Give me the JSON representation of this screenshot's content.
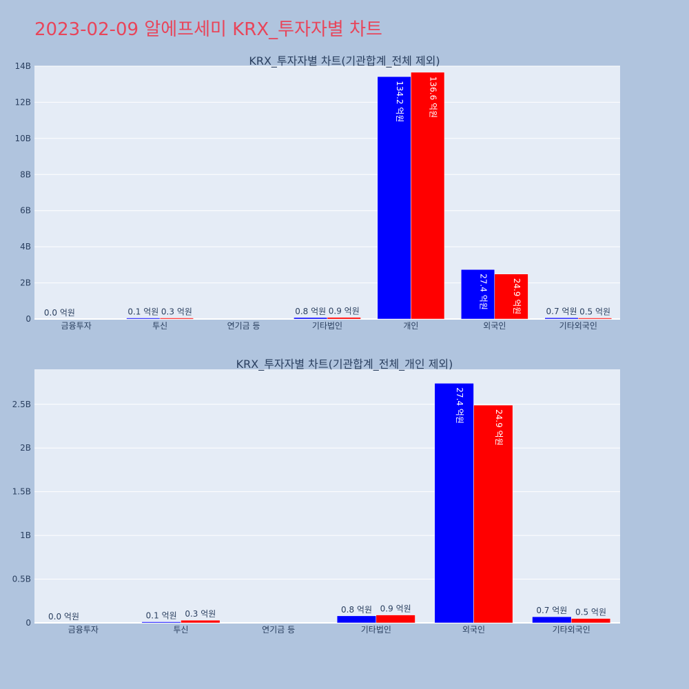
{
  "page": {
    "title": "2023-02-09 알에프세미 KRX_투자자별 차트"
  },
  "colors": {
    "background": "#b0c4de",
    "plot_bg": "#e5ecf6",
    "grid": "#ffffff",
    "series_a": "#0000ff",
    "series_b": "#ff0000",
    "title": "#e8455a"
  },
  "chart_data": [
    {
      "type": "bar",
      "title": "KRX_투자자별 차트(기관합계_전체 제외)",
      "categories": [
        "금융투자",
        "투신",
        "연기금 등",
        "기타법인",
        "개인",
        "외국인",
        "기타외국인"
      ],
      "ylim": [
        0,
        14000000000
      ],
      "yticks": [
        0,
        2000000000,
        4000000000,
        6000000000,
        8000000000,
        10000000000,
        12000000000,
        14000000000
      ],
      "ytick_labels": [
        "0",
        "2B",
        "4B",
        "6B",
        "8B",
        "10B",
        "12B",
        "14B"
      ],
      "grid": true,
      "legend": "none",
      "series": [
        {
          "color": "#0000ff",
          "values": [
            0,
            10000000,
            0,
            80000000,
            13420000000,
            2740000000,
            70000000
          ],
          "labels": [
            "0.0 억원",
            "0.1 억원",
            "",
            "0.8 억원",
            "134.2 억원",
            "27.4 억원",
            "0.7 억원"
          ]
        },
        {
          "color": "#ff0000",
          "values": [
            0,
            30000000,
            0,
            90000000,
            13660000000,
            2490000000,
            50000000
          ],
          "labels": [
            "",
            "0.3 억원",
            "",
            "0.9 억원",
            "136.6 억원",
            "24.9 억원",
            "0.5 억원"
          ]
        }
      ]
    },
    {
      "type": "bar",
      "title": "KRX_투자자별 차트(기관합계_전체_개인 제외)",
      "categories": [
        "금융투자",
        "투신",
        "연기금 등",
        "기타법인",
        "외국인",
        "기타외국인"
      ],
      "ylim": [
        0,
        2900000000
      ],
      "yticks": [
        0,
        500000000,
        1000000000,
        1500000000,
        2000000000,
        2500000000
      ],
      "ytick_labels": [
        "0",
        "0.5B",
        "1B",
        "1.5B",
        "2B",
        "2.5B"
      ],
      "grid": true,
      "legend": "none",
      "series": [
        {
          "color": "#0000ff",
          "values": [
            0,
            10000000,
            0,
            80000000,
            2740000000,
            70000000
          ],
          "labels": [
            "0.0 억원",
            "0.1 억원",
            "",
            "0.8 억원",
            "27.4 억원",
            "0.7 억원"
          ]
        },
        {
          "color": "#ff0000",
          "values": [
            0,
            30000000,
            0,
            90000000,
            2490000000,
            50000000
          ],
          "labels": [
            "",
            "0.3 억원",
            "",
            "0.9 억원",
            "24.9 억원",
            "0.5 억원"
          ]
        }
      ]
    }
  ]
}
